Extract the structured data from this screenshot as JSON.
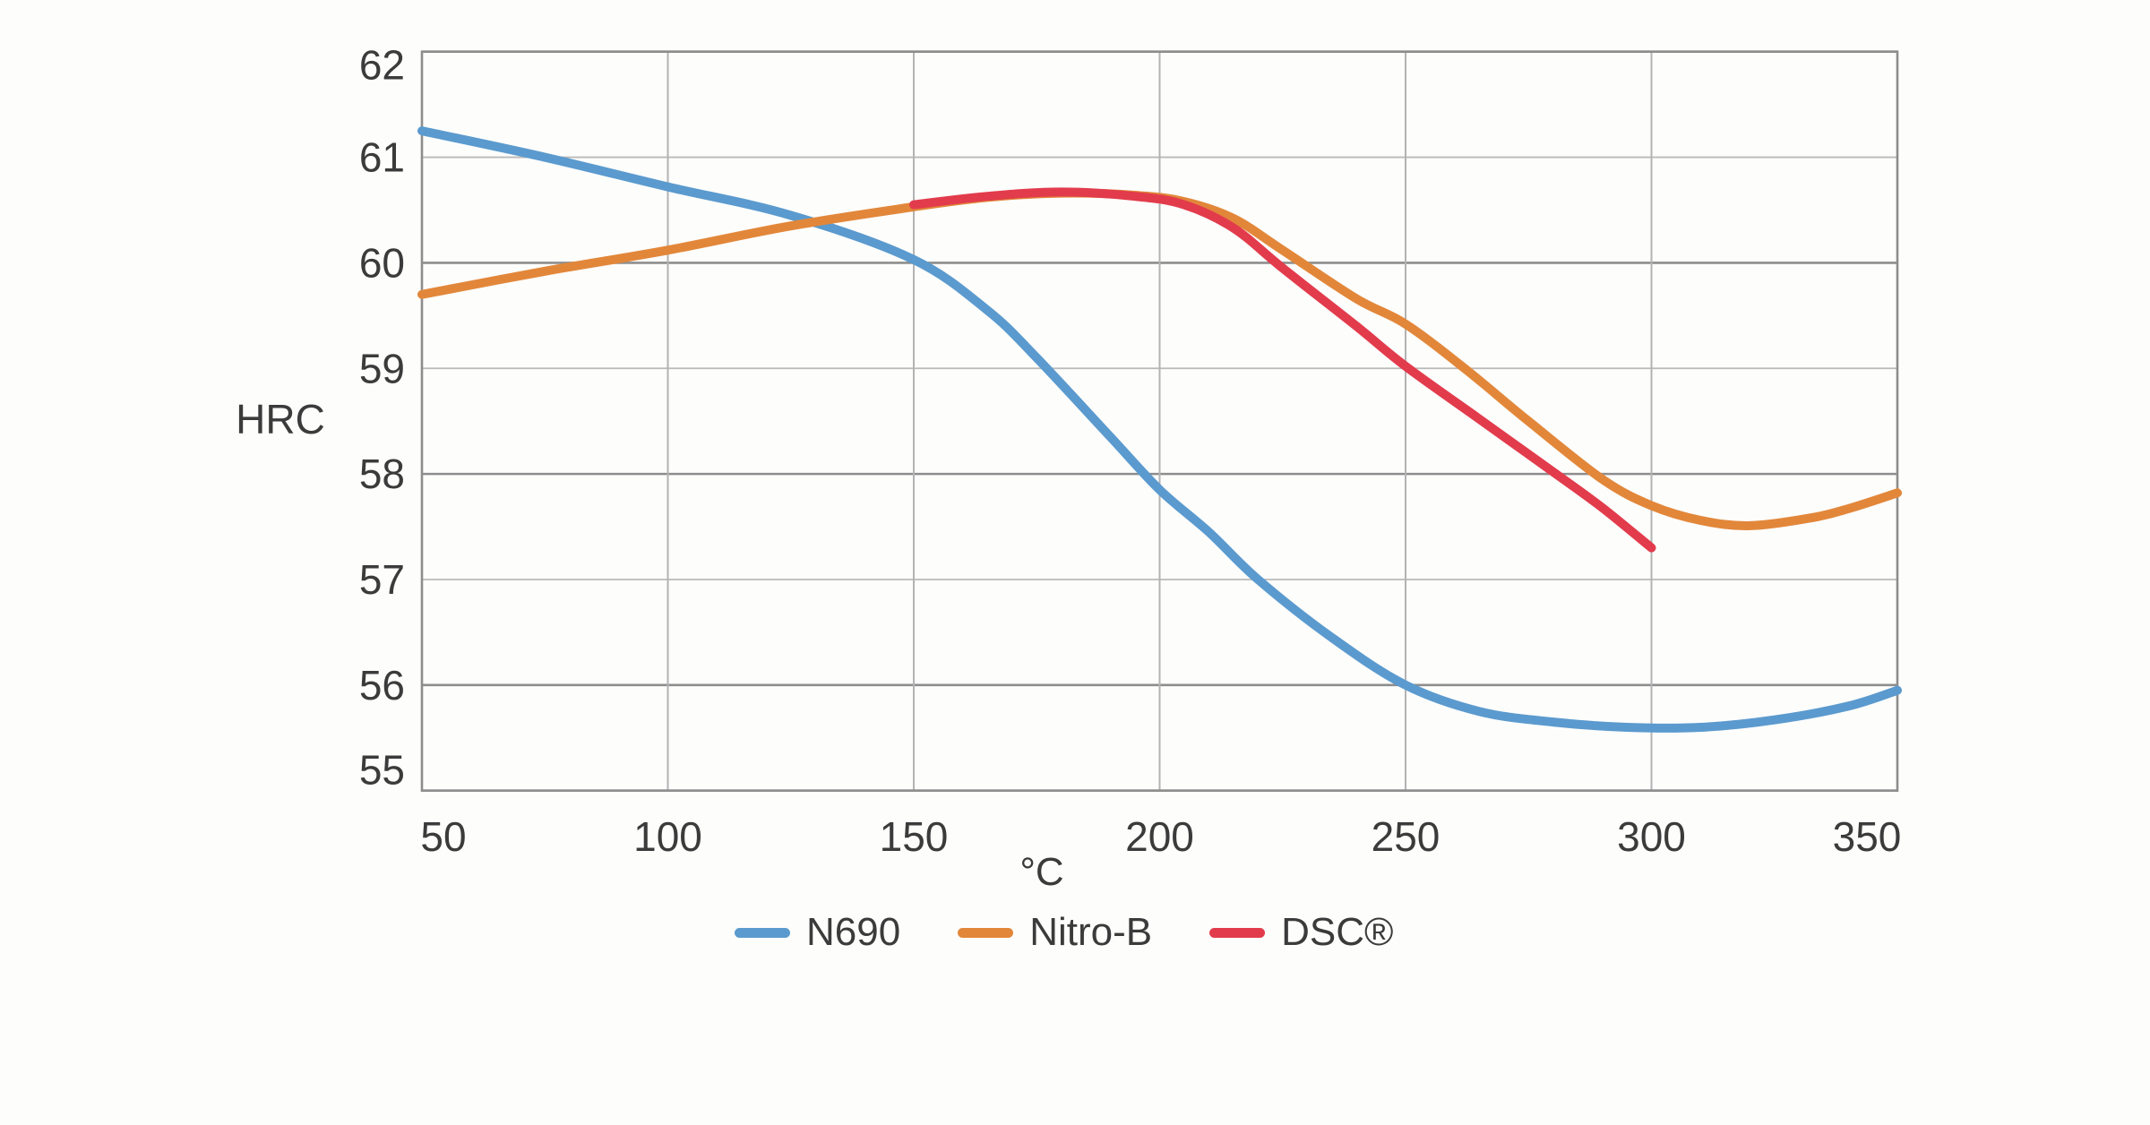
{
  "chart_data": {
    "type": "line",
    "title": "",
    "xlabel": "°C",
    "ylabel": "HRC",
    "x_range": [
      50,
      350
    ],
    "y_range": [
      55,
      62
    ],
    "x_ticks": [
      50,
      100,
      150,
      200,
      250,
      300,
      350
    ],
    "y_ticks": [
      55,
      56,
      57,
      58,
      59,
      60,
      61,
      62
    ],
    "grid": true,
    "legend_position": "bottom",
    "series": [
      {
        "name": "N690",
        "color": "#5b9ace",
        "points": [
          [
            50,
            61.25
          ],
          [
            75,
            61.0
          ],
          [
            100,
            60.72
          ],
          [
            125,
            60.45
          ],
          [
            150,
            60.03
          ],
          [
            165,
            59.55
          ],
          [
            175,
            59.1
          ],
          [
            190,
            58.35
          ],
          [
            200,
            57.85
          ],
          [
            210,
            57.45
          ],
          [
            220,
            57.0
          ],
          [
            235,
            56.45
          ],
          [
            250,
            56.0
          ],
          [
            265,
            55.75
          ],
          [
            280,
            55.65
          ],
          [
            295,
            55.6
          ],
          [
            310,
            55.6
          ],
          [
            325,
            55.67
          ],
          [
            340,
            55.8
          ],
          [
            350,
            55.95
          ]
        ]
      },
      {
        "name": "Nitro-B",
        "color": "#e2873a",
        "points": [
          [
            50,
            59.7
          ],
          [
            75,
            59.92
          ],
          [
            100,
            60.12
          ],
          [
            125,
            60.35
          ],
          [
            150,
            60.53
          ],
          [
            165,
            60.62
          ],
          [
            180,
            60.66
          ],
          [
            195,
            60.64
          ],
          [
            205,
            60.58
          ],
          [
            215,
            60.42
          ],
          [
            225,
            60.12
          ],
          [
            240,
            59.66
          ],
          [
            250,
            59.42
          ],
          [
            262,
            59.0
          ],
          [
            275,
            58.5
          ],
          [
            290,
            57.95
          ],
          [
            300,
            57.7
          ],
          [
            310,
            57.56
          ],
          [
            320,
            57.51
          ],
          [
            332,
            57.58
          ],
          [
            340,
            57.67
          ],
          [
            350,
            57.82
          ]
        ]
      },
      {
        "name": "DSC®",
        "color": "#e23c4c",
        "points": [
          [
            150,
            60.55
          ],
          [
            165,
            60.63
          ],
          [
            180,
            60.67
          ],
          [
            195,
            60.63
          ],
          [
            205,
            60.55
          ],
          [
            215,
            60.33
          ],
          [
            225,
            59.95
          ],
          [
            240,
            59.4
          ],
          [
            250,
            59.02
          ],
          [
            265,
            58.52
          ],
          [
            280,
            58.02
          ],
          [
            290,
            57.68
          ],
          [
            300,
            57.3
          ]
        ]
      }
    ]
  }
}
